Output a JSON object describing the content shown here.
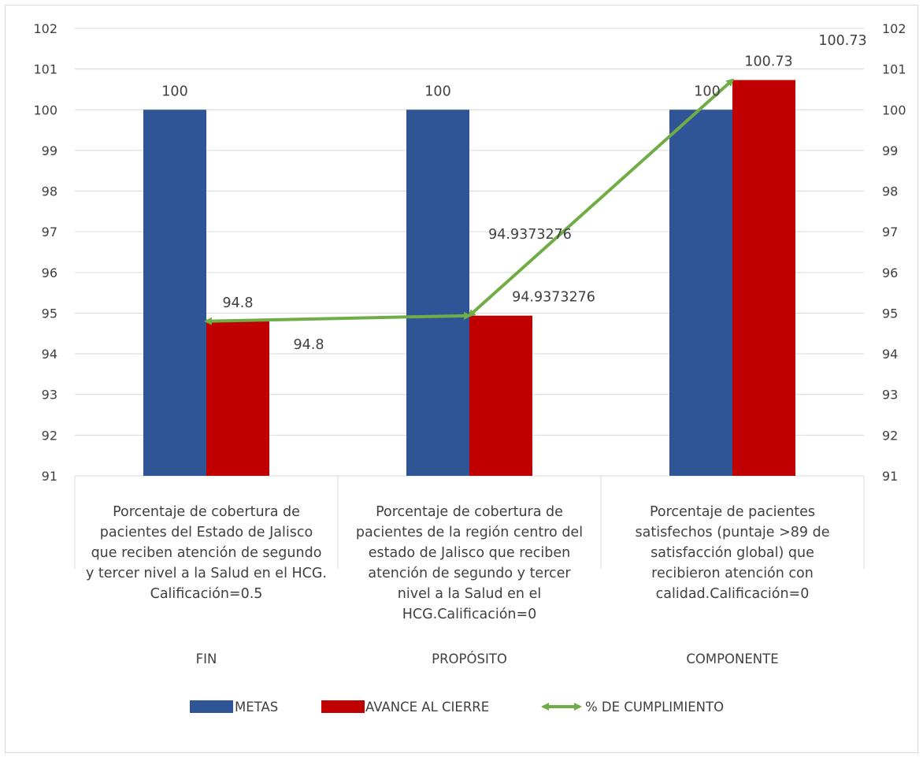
{
  "chart_data": {
    "type": "bar",
    "title": "",
    "xlabel": "",
    "ylabel": "",
    "ylim": [
      91,
      102
    ],
    "yticks": [
      91,
      92,
      93,
      94,
      95,
      96,
      97,
      98,
      99,
      100,
      101,
      102
    ],
    "secondary_ylim": [
      91,
      102
    ],
    "grid": true,
    "legend_position": "bottom",
    "categories": [
      {
        "group": "FIN",
        "description_lines": [
          "Porcentaje de cobertura de",
          "pacientes  del  Estado de Jalisco",
          "que reciben atención de segundo",
          "y tercer nivel a la Salud en el HCG.",
          "Calificación=0.5"
        ]
      },
      {
        "group": "PROPÓSITO",
        "description_lines": [
          "Porcentaje de cobertura de",
          "pacientes de la región centro del",
          "estado de Jalisco que reciben",
          "atención de segundo y tercer",
          "nivel a la Salud en el",
          "HCG.Calificación=0"
        ]
      },
      {
        "group": "COMPONENTE",
        "description_lines": [
          "Porcentaje de pacientes",
          "satisfechos (puntaje >89 de",
          "satisfacción global) que",
          "recibieron atención con",
          "calidad.Calificación=0"
        ]
      }
    ],
    "series": [
      {
        "name": "METAS",
        "type": "bar",
        "color": "#2F5597",
        "values": [
          100,
          100,
          100
        ],
        "labels": [
          "100",
          "100",
          "100"
        ]
      },
      {
        "name": "AVANCE AL CIERRE",
        "type": "bar",
        "color": "#C00000",
        "values": [
          94.8,
          94.9373276,
          100.73
        ],
        "labels": [
          "94.8",
          "94.9373276",
          "100.73"
        ]
      },
      {
        "name": "% DE CUMPLIMIENTO",
        "type": "line",
        "color": "#70AD47",
        "values": [
          94.8,
          94.9373276,
          100.73
        ],
        "labels": [
          "94.8",
          "94.9373276",
          "100.73"
        ]
      }
    ]
  }
}
